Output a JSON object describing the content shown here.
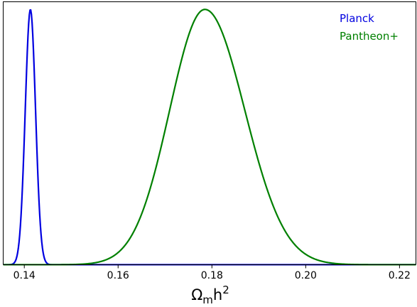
{
  "chart_data": {
    "type": "line",
    "title": "",
    "xlabel": "Ωmh2",
    "ylabel": "",
    "xlim": [
      0.1355,
      0.2235
    ],
    "ylim": [
      0,
      1.03
    ],
    "xticks": [
      0.14,
      0.16,
      0.18,
      0.2,
      0.22
    ],
    "xtick_labels": [
      "0.14",
      "0.16",
      "0.18",
      "0.20",
      "0.22"
    ],
    "legend_position": "top-right",
    "grid": false,
    "series": [
      {
        "name": "Planck",
        "color": "#0000e0",
        "distribution": "normalized posterior",
        "mean": 0.1413,
        "sigma": 0.0011,
        "peak": 1.0
      },
      {
        "name": "Pantheon+",
        "color": "#008000",
        "distribution": "normalized posterior",
        "mode": 0.1785,
        "sigma_left": 0.0075,
        "sigma_right": 0.0085,
        "peak": 1.0
      }
    ]
  }
}
